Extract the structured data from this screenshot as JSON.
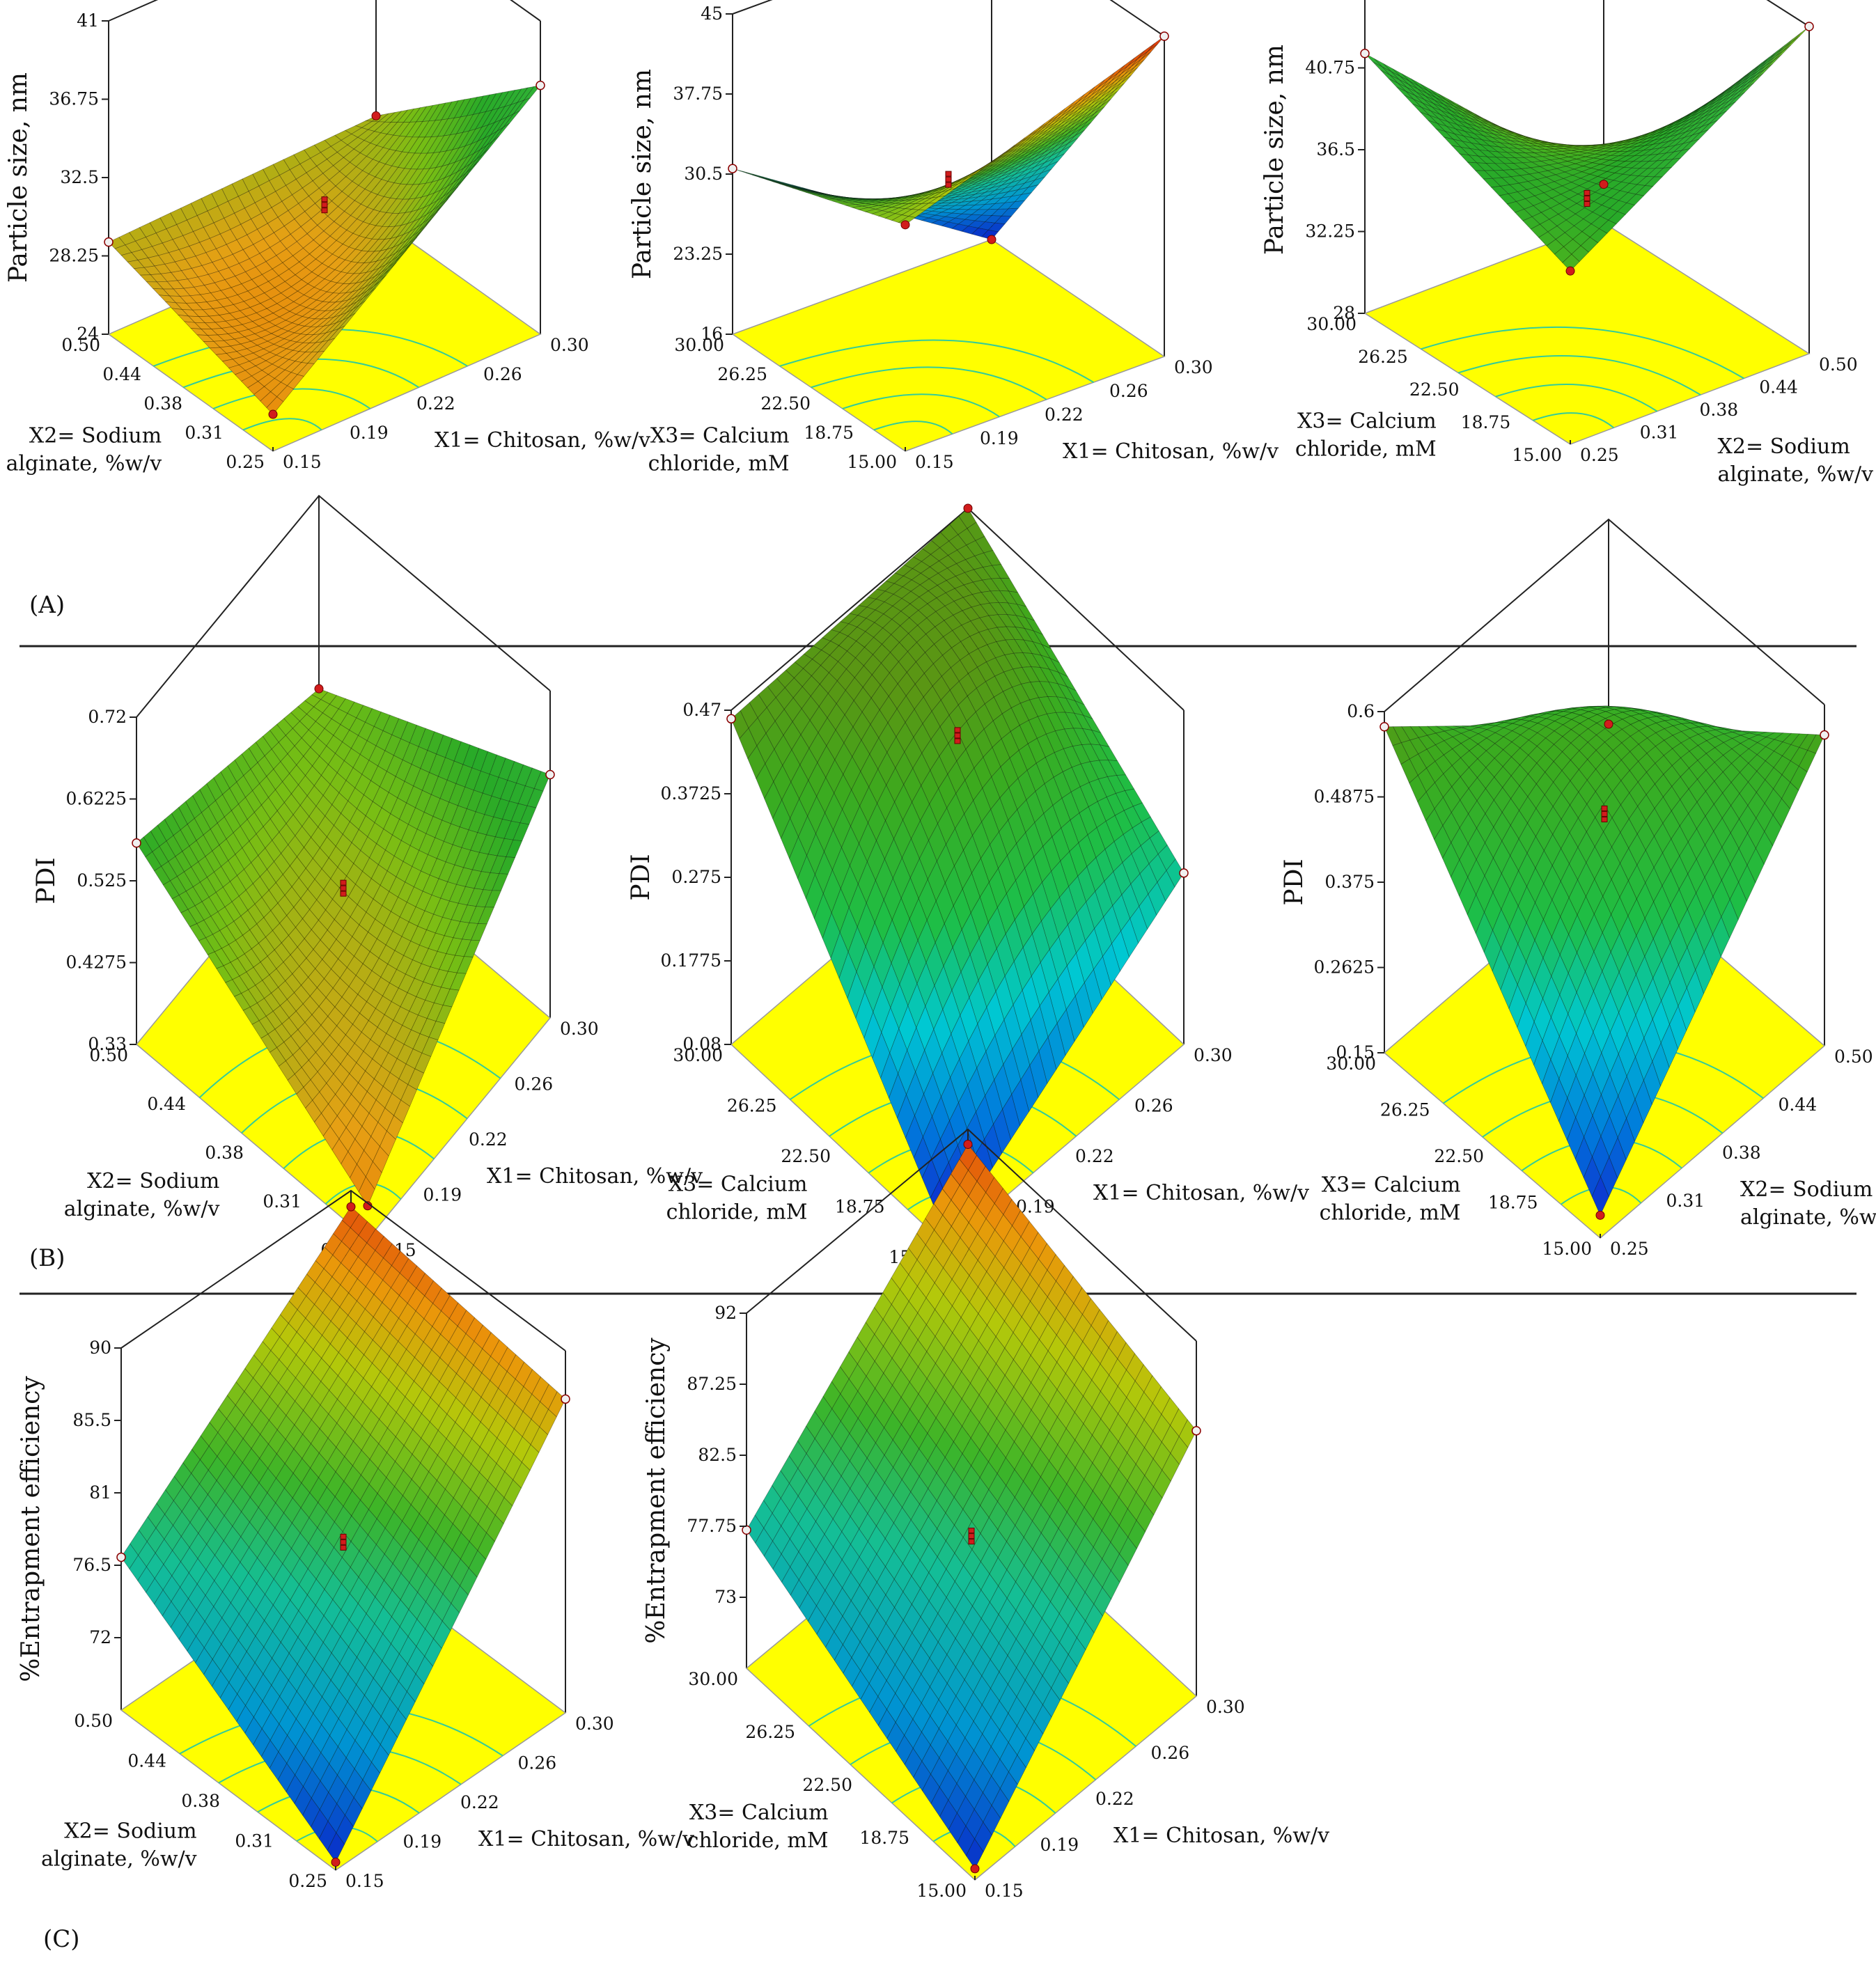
{
  "figure": {
    "separators": 2,
    "panel_labels": [
      "(A)",
      "(B)",
      "(C)"
    ]
  },
  "chart_data": [
    {
      "type": "surface3d",
      "panel": "A",
      "zlabel": "Particle size, nm",
      "zticks": [
        "41",
        "36.75",
        "32.5",
        "28.25",
        "24"
      ],
      "zlim": [
        24,
        41
      ],
      "xlabel": "X1= Chitosan, %w/v",
      "xticks": [
        "0.15",
        "0.19",
        "0.22",
        "0.26",
        "0.30"
      ],
      "xlim": [
        0.15,
        0.3
      ],
      "ylabel": [
        "X2= Sodium",
        "alginate, %w/v"
      ],
      "yticks": [
        "0.25",
        "0.31",
        "0.38",
        "0.44",
        "0.50"
      ],
      "ylim": [
        0.25,
        0.5
      ],
      "corner_values": {
        "x_low_y_low": 26,
        "x_high_y_low": 37.5,
        "x_low_y_high": 29,
        "x_high_y_high": 29.5
      },
      "curvature": -3.5,
      "center_value": 31,
      "colormap": "green-orange"
    },
    {
      "type": "surface3d",
      "panel": "A",
      "zlabel": "Particle size, nm",
      "zticks": [
        "45",
        "37.75",
        "30.5",
        "23.25",
        "16"
      ],
      "zlim": [
        16,
        45
      ],
      "xlabel": "X1= Chitosan, %w/v",
      "xticks": [
        "0.15",
        "0.19",
        "0.22",
        "0.26",
        "0.30"
      ],
      "xlim": [
        0.15,
        0.3
      ],
      "ylabel": [
        "X3= Calcium",
        "chloride, mM"
      ],
      "yticks": [
        "15.00",
        "18.75",
        "22.50",
        "26.25",
        "30.00"
      ],
      "ylim": [
        15,
        30
      ],
      "corner_values": {
        "x_low_y_low": 36.5,
        "x_high_y_low": 45,
        "x_low_y_high": 31,
        "x_high_y_high": 16
      },
      "curvature": -2,
      "center_value": 31,
      "colormap": "blue-green-orange"
    },
    {
      "type": "surface3d",
      "panel": "A",
      "zlabel": "Particle size, nm",
      "zticks": [
        "45",
        "40.75",
        "36.5",
        "32.25",
        "28"
      ],
      "zlim": [
        28,
        45
      ],
      "xlabel": [
        "X2= Sodium",
        "alginate, %w/v"
      ],
      "xticks": [
        "0.25",
        "0.31",
        "0.38",
        "0.44",
        "0.50"
      ],
      "xlim": [
        0.25,
        0.5
      ],
      "ylabel": [
        "X3= Calcium",
        "chloride, mM"
      ],
      "yticks": [
        "15.00",
        "18.75",
        "22.50",
        "26.25",
        "30.00"
      ],
      "ylim": [
        15,
        30
      ],
      "corner_values": {
        "x_low_y_low": 37,
        "x_high_y_low": 45,
        "x_low_y_high": 41.5,
        "x_high_y_high": 30
      },
      "curvature": -1,
      "center_value": 35,
      "colormap": "green-orange"
    },
    {
      "type": "surface3d",
      "panel": "B",
      "zlabel": "PDI",
      "zticks": [
        "0.72",
        "0.6225",
        "0.525",
        "0.4275",
        "0.33"
      ],
      "zlim": [
        0.33,
        0.72
      ],
      "xlabel": "X1= Chitosan, %w/v",
      "xticks": [
        "0.15",
        "0.19",
        "0.22",
        "0.26",
        "0.30"
      ],
      "xlim": [
        0.15,
        0.3
      ],
      "ylabel": [
        "X2= Sodium",
        "alginate, %w/v"
      ],
      "yticks": [
        "0.25",
        "0.31",
        "0.38",
        "0.44",
        "0.50"
      ],
      "ylim": [
        0.25,
        0.5
      ],
      "corner_values": {
        "x_low_y_low": 0.37,
        "x_high_y_low": 0.62,
        "x_low_y_high": 0.57,
        "x_high_y_high": 0.49
      },
      "curvature": -0.06,
      "center_value": 0.5,
      "colormap": "green-orange"
    },
    {
      "type": "surface3d",
      "panel": "B",
      "zlabel": "PDI",
      "zticks": [
        "0.47",
        "0.3725",
        "0.275",
        "0.1775",
        "0.08"
      ],
      "zlim": [
        0.08,
        0.47
      ],
      "xlabel": "X1= Chitosan, %w/v",
      "xticks": [
        "0.15",
        "0.19",
        "0.22",
        "0.26",
        "0.30"
      ],
      "xlim": [
        0.15,
        0.3
      ],
      "ylabel": [
        "X3= Calcium",
        "chloride, mM"
      ],
      "yticks": [
        "15.00",
        "18.75",
        "22.50",
        "26.25",
        "30.00"
      ],
      "ylim": [
        15,
        30
      ],
      "corner_values": {
        "x_low_y_low": 0.09,
        "x_high_y_low": 0.28,
        "x_low_y_high": 0.46,
        "x_high_y_high": 0.47
      },
      "curvature": 0.12,
      "center_value": 0.44,
      "colormap": "blue-green"
    },
    {
      "type": "surface3d",
      "panel": "B",
      "zlabel": "PDI",
      "zticks": [
        "0.6",
        "0.4875",
        "0.375",
        "0.2625",
        "0.15"
      ],
      "zlim": [
        0.15,
        0.6
      ],
      "xlabel": [
        "X2= Sodium",
        "alginate, %w/v"
      ],
      "xticks": [
        "0.25",
        "0.31",
        "0.38",
        "0.44",
        "0.50"
      ],
      "xlim": [
        0.25,
        0.5
      ],
      "ylabel": [
        "X3= Calcium",
        "chloride, mM"
      ],
      "yticks": [
        "15.00",
        "18.75",
        "22.50",
        "26.25",
        "30.00"
      ],
      "ylim": [
        15,
        30
      ],
      "corner_values": {
        "x_low_y_low": 0.18,
        "x_high_y_low": 0.56,
        "x_low_y_high": 0.58,
        "x_high_y_high": 0.33
      },
      "curvature": 0.12,
      "center_value": 0.46,
      "colormap": "blue-green"
    },
    {
      "type": "surface3d",
      "panel": "C",
      "zlabel": "%Entrapment efficiency",
      "zticks": [
        "90",
        "85.5",
        "81",
        "76.5",
        "72"
      ],
      "zlim": [
        67.5,
        90
      ],
      "xlabel": "X1= Chitosan, %w/v",
      "xticks": [
        "0.15",
        "0.19",
        "0.22",
        "0.26",
        "0.30"
      ],
      "xlim": [
        0.15,
        0.3
      ],
      "ylabel": [
        "X2= Sodium",
        "alginate, %w/v"
      ],
      "yticks": [
        "0.25",
        "0.31",
        "0.38",
        "0.44",
        "0.50"
      ],
      "ylim": [
        0.25,
        0.5
      ],
      "corner_values": {
        "x_low_y_low": 68,
        "x_high_y_low": 87,
        "x_low_y_high": 77,
        "x_high_y_high": 89
      },
      "curvature": 0,
      "center_value": 78,
      "colormap": "blue-green-orange"
    },
    {
      "type": "surface3d",
      "panel": "C",
      "zlabel": "%Entrapment efficiency",
      "zticks": [
        "92",
        "87.25",
        "82.5",
        "77.75",
        "73"
      ],
      "zlim": [
        68.25,
        92
      ],
      "xlabel": "X1= Chitosan, %w/v",
      "xticks": [
        "0.15",
        "0.19",
        "0.22",
        "0.26",
        "0.30"
      ],
      "xlim": [
        0.15,
        0.3
      ],
      "ylabel": [
        "X3= Calcium",
        "chloride, mM"
      ],
      "yticks": [
        "15.00",
        "18.75",
        "22.50",
        "26.25",
        "30.00"
      ],
      "ylim": [
        15,
        30
      ],
      "corner_values": {
        "x_low_y_low": 69,
        "x_high_y_low": 86,
        "x_low_y_high": 77.5,
        "x_high_y_high": 91
      },
      "curvature": 0,
      "center_value": 78,
      "colormap": "blue-green-orange"
    }
  ]
}
